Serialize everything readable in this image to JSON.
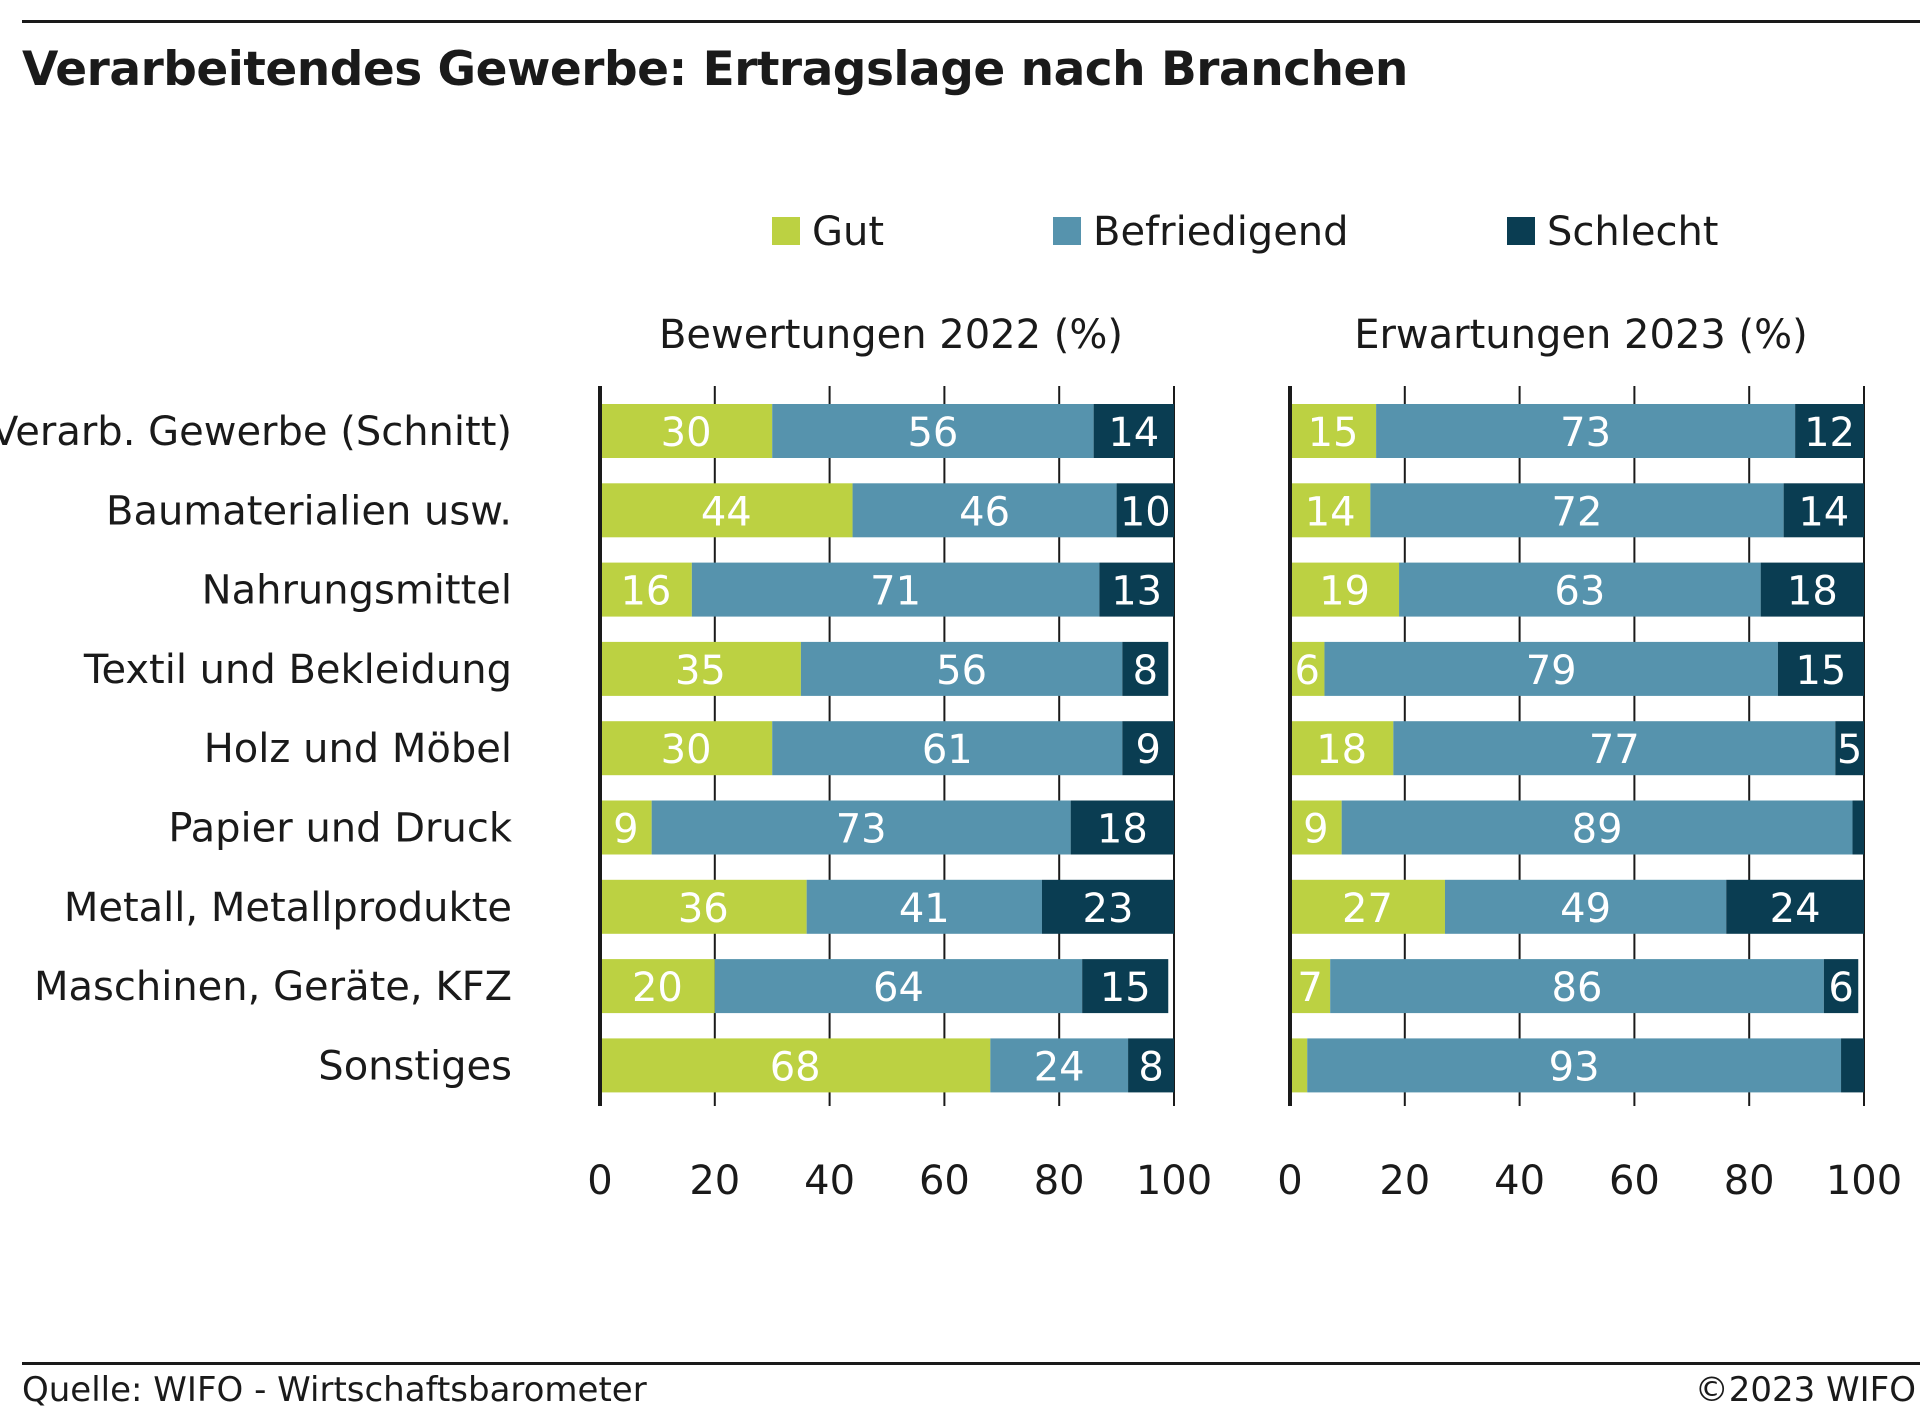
{
  "title": "Verarbeitendes Gewerbe: Ertragslage nach Branchen",
  "source": "Quelle: WIFO - Wirtschaftsbarometer",
  "copyright": "©2023 WIFO",
  "chart_data": {
    "type": "bar",
    "orientation": "horizontal",
    "stacked": true,
    "legend_position": "top",
    "grid": true,
    "categories": [
      "Verarb. Gewerbe (Schnitt)",
      "Baumaterialien usw.",
      "Nahrungsmittel",
      "Textil und Bekleidung",
      "Holz und Möbel",
      "Papier und Druck",
      "Metall, Metallprodukte",
      "Maschinen, Geräte, KFZ",
      "Sonstiges"
    ],
    "legend": [
      {
        "name": "Gut",
        "color": "#bcd142"
      },
      {
        "name": "Befriedigend",
        "color": "#5693ad"
      },
      {
        "name": "Schlecht",
        "color": "#0a3d52"
      }
    ],
    "xlim": [
      0,
      100
    ],
    "xticks": [
      0,
      20,
      40,
      60,
      80,
      100
    ],
    "panels": [
      {
        "title": "Bewertungen 2022 (%)",
        "series": [
          {
            "name": "Gut",
            "values": [
              30,
              44,
              16,
              35,
              30,
              9,
              36,
              20,
              68
            ]
          },
          {
            "name": "Befriedigend",
            "values": [
              56,
              46,
              71,
              56,
              61,
              73,
              41,
              64,
              24
            ]
          },
          {
            "name": "Schlecht",
            "values": [
              14,
              10,
              13,
              8,
              9,
              18,
              23,
              15,
              8
            ]
          }
        ],
        "labels": [
          [
            "30",
            "56",
            "14"
          ],
          [
            "44",
            "46",
            "10"
          ],
          [
            "16",
            "71",
            "13"
          ],
          [
            "35",
            "56",
            "8"
          ],
          [
            "30",
            "61",
            "9"
          ],
          [
            "9",
            "73",
            "18"
          ],
          [
            "36",
            "41",
            "23"
          ],
          [
            "20",
            "64",
            "15"
          ],
          [
            "68",
            "24",
            "8"
          ]
        ]
      },
      {
        "title": "Erwartungen 2023 (%)",
        "series": [
          {
            "name": "Gut",
            "values": [
              15,
              14,
              19,
              6,
              18,
              9,
              27,
              7,
              3
            ]
          },
          {
            "name": "Befriedigend",
            "values": [
              73,
              72,
              63,
              79,
              77,
              89,
              49,
              86,
              93
            ]
          },
          {
            "name": "Schlecht",
            "values": [
              12,
              14,
              18,
              15,
              5,
              2,
              24,
              6,
              4
            ]
          }
        ],
        "labels": [
          [
            "15",
            "73",
            "12"
          ],
          [
            "14",
            "72",
            "14"
          ],
          [
            "19",
            "63",
            "18"
          ],
          [
            "6",
            "79",
            "15"
          ],
          [
            "18",
            "77",
            "5"
          ],
          [
            "9",
            "89",
            ""
          ],
          [
            "27",
            "49",
            "24"
          ],
          [
            "7",
            "86",
            "6"
          ],
          [
            "",
            "93",
            ""
          ]
        ]
      }
    ]
  }
}
